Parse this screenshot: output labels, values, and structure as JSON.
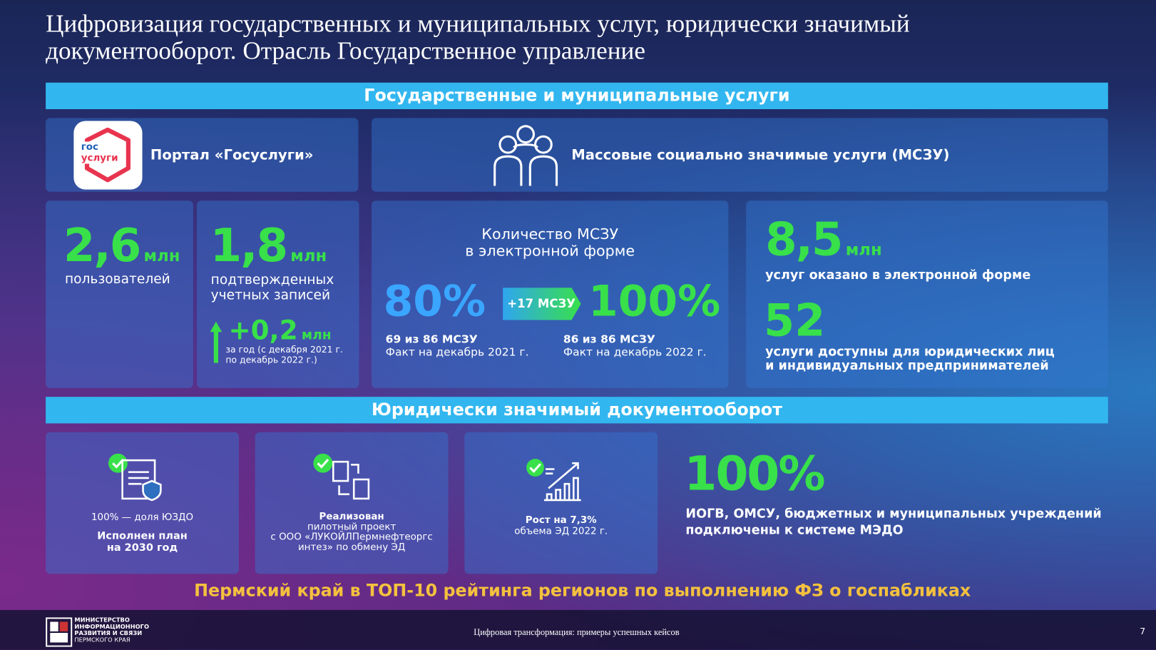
{
  "header": {
    "title_lines": [
      "Цифровизация государственных и муниципальных услуг, юридически значимый",
      "документооборот. Отрасль Государственное управление"
    ]
  },
  "section1": {
    "title": "Государственные и муниципальные услуги",
    "portal": {
      "logo_line1": "гос",
      "logo_line2": "услуги",
      "label": "Портал «Госуслуги»"
    },
    "mszu": {
      "label": "Массовые социально значимые услуги (МСЗУ)"
    },
    "users": {
      "value": "2,6",
      "unit": "млн",
      "label": "пользователей"
    },
    "accounts": {
      "value": "1,8",
      "unit": "млн",
      "label_lines": [
        "подтвержденных",
        "учетных записей"
      ],
      "growth": "+0,2",
      "growth_unit": "млн",
      "growth_note_lines": [
        "за год (с декабря 2021 г.",
        "по декабрь 2022 г.)"
      ]
    },
    "mszu_count": {
      "title_lines": [
        "Количество МСЗУ",
        "в электронной форме"
      ],
      "from": "80%",
      "badge": "+17 МСЗУ",
      "to": "100%",
      "from_note_1": "69 из 86 МСЗУ",
      "from_note_2": "Факт на декабрь 2021 г.",
      "to_note_1": "86 из 86 МСЗУ",
      "to_note_2": "Факт на декабрь 2022 г."
    },
    "electronic": {
      "value": "8,5",
      "unit": "млн",
      "label": "услуг оказано в электронной форме",
      "count": "52",
      "count_label_lines": [
        "услуги доступны для юридических лиц",
        "и индивидуальных предпринимателей"
      ]
    }
  },
  "section2": {
    "title": "Юридически значимый документооборот",
    "cards": [
      {
        "lines": [
          "100% — доля ЮЗДО"
        ],
        "bold_lines": [
          "Исполнен план",
          "на 2030 год"
        ]
      },
      {
        "lines": [
          "Реализован",
          "пилотный проект",
          "с ООО «ЛУКОЙЛПермнефтеоргс",
          "интез» по обмену ЭД"
        ]
      },
      {
        "lines": [
          "Рост на 7,3%",
          "объема ЭД 2022 г."
        ]
      }
    ],
    "medo": {
      "value": "100%",
      "label_lines": [
        "ИОГВ, ОМСУ, бюджетных и муниципальных учреждений",
        "подключены к системе МЭДО"
      ]
    }
  },
  "highlight": "Пермский край в ТОП-10 рейтинга регионов по выполнению ФЗ о госпабликах",
  "footer": {
    "org_lines": [
      "МИНИСТЕРСТВО",
      "ИНФОРМАЦИОННОГО",
      "РАЗВИТИЯ И СВЯЗИ",
      "ПЕРМСКОГО КРАЯ"
    ],
    "caption": "Цифровая трансформация: примеры успешных кейсов",
    "page": "7"
  }
}
